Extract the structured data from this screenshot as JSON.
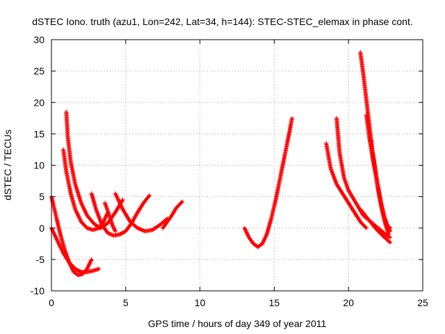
{
  "chart_data": {
    "type": "scatter",
    "title": "dSTEC Iono. truth (azu1, Lon=242, Lat=34, h=144): STEC-STEC_elemax in phase cont.",
    "xlabel": "GPS time / hours of day 349 of year 2011",
    "ylabel": "dSTEC  / TECUs",
    "xlim": [
      0,
      25
    ],
    "ylim": [
      -10,
      30
    ],
    "xticks": [
      0,
      5,
      10,
      15,
      20,
      25
    ],
    "yticks": [
      -10,
      -5,
      0,
      5,
      10,
      15,
      20,
      25,
      30
    ],
    "grid": true,
    "marker": "+",
    "color": "#ff0000",
    "arcs": [
      {
        "x": [
          0.0,
          0.4,
          0.8,
          1.2,
          1.6,
          2.0,
          2.4,
          2.8,
          3.2
        ],
        "y": [
          0.0,
          -2.0,
          -4.0,
          -5.5,
          -6.5,
          -7.0,
          -7.0,
          -6.8,
          -6.5
        ]
      },
      {
        "x": [
          0.0,
          0.3,
          0.6,
          0.9,
          1.2,
          1.5,
          1.8,
          2.1,
          2.4,
          2.7
        ],
        "y": [
          5.0,
          2.0,
          -1.0,
          -3.5,
          -5.5,
          -7.0,
          -7.5,
          -7.3,
          -6.5,
          -5.0
        ]
      },
      {
        "x": [
          0.8,
          1.0,
          1.3,
          1.6,
          2.0,
          2.4,
          2.8,
          3.2,
          3.5,
          3.8
        ],
        "y": [
          12.5,
          9.0,
          5.5,
          3.0,
          1.0,
          0.0,
          -0.3,
          0.0,
          1.0,
          2.5
        ]
      },
      {
        "x": [
          1.0,
          1.1,
          1.3,
          1.6,
          2.0,
          2.4,
          2.9,
          3.3,
          3.8,
          4.3,
          4.8
        ],
        "y": [
          18.5,
          14.5,
          10.5,
          7.0,
          4.0,
          2.0,
          0.6,
          0.0,
          0.8,
          2.5,
          4.5
        ]
      },
      {
        "x": [
          2.7,
          3.0,
          3.4,
          3.8,
          4.2,
          4.6,
          5.0,
          5.4,
          5.8,
          6.2,
          6.6
        ],
        "y": [
          5.5,
          3.0,
          0.5,
          -0.8,
          -1.2,
          -1.0,
          -0.5,
          0.8,
          2.5,
          4.0,
          5.2
        ]
      },
      {
        "x": [
          3.6,
          3.9,
          4.1,
          4.3
        ],
        "y": [
          4.0,
          2.0,
          0.5,
          -0.5
        ]
      },
      {
        "x": [
          4.3,
          4.8,
          5.3,
          5.8,
          6.3,
          6.8,
          7.3,
          7.8
        ],
        "y": [
          5.5,
          3.0,
          1.0,
          0.0,
          -0.5,
          -0.3,
          0.5,
          1.5
        ]
      },
      {
        "x": [
          7.5,
          7.8,
          8.1,
          8.4,
          8.8
        ],
        "y": [
          0.0,
          1.0,
          2.0,
          3.2,
          4.2
        ]
      },
      {
        "x": [
          13.0,
          13.3,
          13.6,
          13.9,
          14.2,
          14.5,
          14.8,
          15.1,
          15.4,
          15.7,
          16.0,
          16.2
        ],
        "y": [
          0.0,
          -1.5,
          -2.5,
          -3.0,
          -2.5,
          -1.0,
          1.5,
          4.5,
          8.0,
          11.5,
          15.0,
          17.5
        ]
      },
      {
        "x": [
          18.5,
          18.8,
          19.2,
          19.6,
          20.0,
          20.4,
          20.8,
          21.2
        ],
        "y": [
          13.5,
          9.5,
          7.0,
          5.5,
          4.0,
          2.5,
          1.0,
          0.0
        ]
      },
      {
        "x": [
          19.2,
          19.4,
          19.7,
          20.0,
          20.5,
          21.0,
          21.5,
          22.0,
          22.5,
          22.8
        ],
        "y": [
          17.5,
          12.0,
          8.0,
          6.0,
          4.0,
          2.0,
          1.0,
          0.0,
          -1.0,
          -1.5
        ]
      },
      {
        "x": [
          20.8,
          21.0,
          21.2,
          21.4,
          21.6,
          21.8,
          22.0,
          22.2,
          22.4,
          22.6,
          22.8
        ],
        "y": [
          28.0,
          24.5,
          20.5,
          16.5,
          12.5,
          9.0,
          6.0,
          3.5,
          1.5,
          0.5,
          0.0
        ]
      },
      {
        "x": [
          21.2,
          21.4,
          21.6,
          21.8,
          22.0,
          22.2,
          22.4,
          22.6,
          22.8
        ],
        "y": [
          18.0,
          14.5,
          11.5,
          9.0,
          6.5,
          4.0,
          2.0,
          0.5,
          -0.5
        ]
      },
      {
        "x": [
          21.5,
          21.7,
          21.9,
          22.1,
          22.3,
          22.5,
          22.7
        ],
        "y": [
          14.0,
          11.0,
          8.0,
          5.0,
          2.5,
          0.5,
          -1.0
        ]
      },
      {
        "x": [
          20.8,
          21.3,
          21.8,
          22.3,
          22.8
        ],
        "y": [
          3.0,
          1.5,
          0.0,
          -1.2,
          -2.3
        ]
      }
    ]
  }
}
